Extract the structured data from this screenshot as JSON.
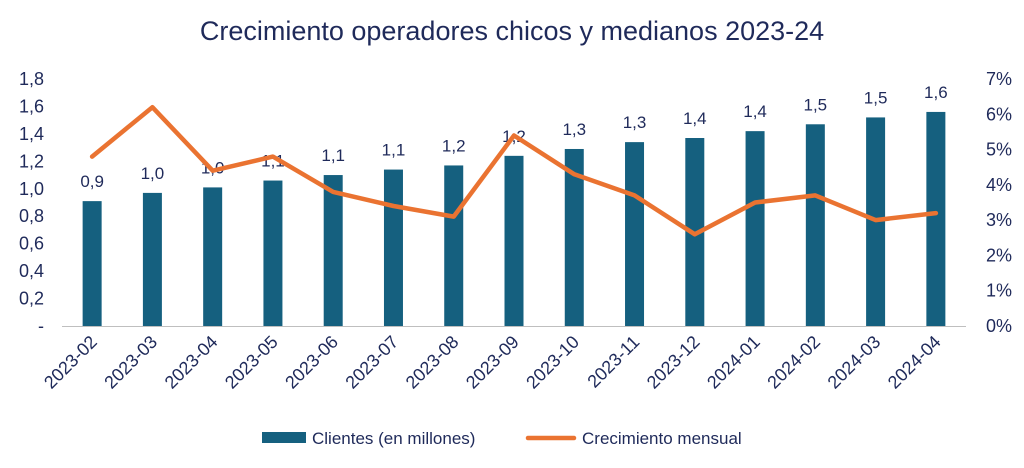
{
  "chart_data": {
    "type": "bar",
    "title": "Crecimiento operadores chicos y medianos 2023-24",
    "categories": [
      "2023-02",
      "2023-03",
      "2023-04",
      "2023-05",
      "2023-06",
      "2023-07",
      "2023-08",
      "2023-09",
      "2023-10",
      "2023-11",
      "2023-12",
      "2024-01",
      "2024-02",
      "2024-03",
      "2024-04"
    ],
    "series": [
      {
        "name": "Clientes (en millones)",
        "type": "bar",
        "axis": "left",
        "values": [
          0.91,
          0.97,
          1.01,
          1.06,
          1.1,
          1.14,
          1.17,
          1.24,
          1.29,
          1.34,
          1.37,
          1.42,
          1.47,
          1.52,
          1.56
        ],
        "data_labels": [
          "0,9",
          "1,0",
          "1,0",
          "1,1",
          "1,1",
          "1,1",
          "1,2",
          "1,2",
          "1,3",
          "1,3",
          "1,4",
          "1,4",
          "1,5",
          "1,5",
          "1,6"
        ],
        "color": "#15607f"
      },
      {
        "name": "Crecimiento mensual",
        "type": "line",
        "axis": "right",
        "values": [
          0.048,
          0.062,
          0.044,
          0.048,
          0.038,
          0.034,
          0.031,
          0.054,
          0.043,
          0.037,
          0.026,
          0.035,
          0.037,
          0.03,
          0.032
        ],
        "color": "#ea7331"
      }
    ],
    "ylim_left": [
      0,
      1.8
    ],
    "yticks_left": [
      "-",
      "0,2",
      "0,4",
      "0,6",
      "0,8",
      "1,0",
      "1,2",
      "1,4",
      "1,6",
      "1,8"
    ],
    "ylim_right": [
      0,
      0.07
    ],
    "yticks_right": [
      "0%",
      "1%",
      "2%",
      "3%",
      "4%",
      "5%",
      "6%",
      "7%"
    ],
    "grid": false,
    "legend_position": "bottom"
  }
}
